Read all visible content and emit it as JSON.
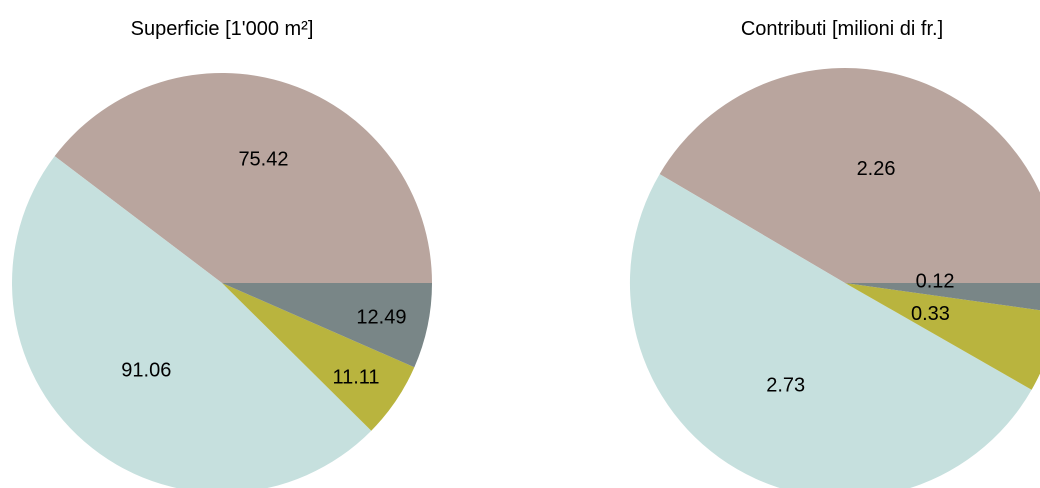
{
  "chart_data": [
    {
      "type": "pie",
      "title": "Superficie [1'000 m²]",
      "categories": [
        "",
        "",
        "",
        ""
      ],
      "values": [
        75.42,
        91.06,
        11.11,
        12.49
      ],
      "value_labels": [
        "75.42",
        "91.06",
        "11.11",
        "12.49"
      ],
      "colors": [
        "#b9a59e",
        "#c6e0de",
        "#b9b43e",
        "#798687"
      ],
      "start_angle_deg": 0,
      "direction": "counterclockwise",
      "start_reference": "3 o'clock"
    },
    {
      "type": "pie",
      "title": "Contributi [milioni di fr.]",
      "categories": [
        "",
        "",
        "",
        ""
      ],
      "values": [
        2.26,
        2.73,
        0.33,
        0.12
      ],
      "value_labels": [
        "2.26",
        "2.73",
        "0.33",
        "0.12"
      ],
      "colors": [
        "#b9a59e",
        "#c6e0de",
        "#b9b43e",
        "#798687"
      ],
      "start_angle_deg": 0,
      "direction": "counterclockwise",
      "start_reference": "3 o'clock"
    }
  ]
}
